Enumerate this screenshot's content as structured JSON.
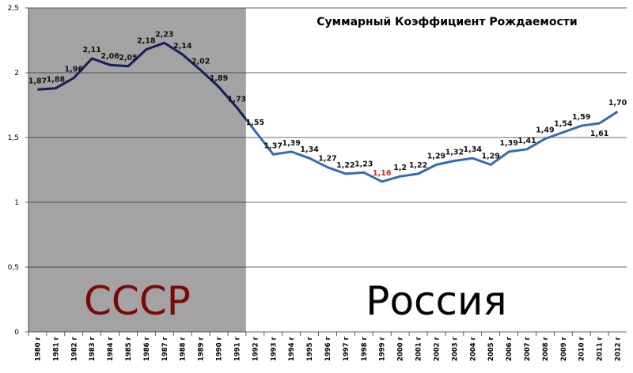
{
  "chart_data": {
    "type": "line",
    "title": "Суммарный Коэффициент Рождаемости",
    "categories": [
      "1980 г",
      "1981 г",
      "1982 г",
      "1983 г",
      "1984 г",
      "1985 г",
      "1986 г",
      "1987 г",
      "1988 г",
      "1989 г",
      "1990 г",
      "1991 г",
      "1992 г",
      "1993 г",
      "1994 г",
      "1995 г",
      "1996 г",
      "1997 г",
      "1998 г",
      "1999 г",
      "2000 г",
      "2001 г",
      "2002 г",
      "2003 г",
      "2004 г",
      "2005 г",
      "2006 г",
      "2007 г",
      "2008 г",
      "2009 г",
      "2010 г",
      "2011 г",
      "2012 г"
    ],
    "series": [
      {
        "color": "#2e6db4",
        "values": [
          1.87,
          1.88,
          1.96,
          2.11,
          2.06,
          2.05,
          2.18,
          2.23,
          2.14,
          2.02,
          1.89,
          1.73,
          1.55,
          1.37,
          1.39,
          1.34,
          1.27,
          1.22,
          1.23,
          1.16,
          1.2,
          1.22,
          1.29,
          1.32,
          1.34,
          1.29,
          1.39,
          1.41,
          1.49,
          1.54,
          1.59,
          1.61,
          1.7
        ],
        "value_labels": [
          "1,87",
          "1,88",
          "1,96",
          "2,11",
          "2,06",
          "2,05",
          "2,18",
          "2,23",
          "2,14",
          "2,02",
          "1,89",
          "1,73",
          "1,55",
          "1,37",
          "1,39",
          "1,34",
          "1,27",
          "1,22",
          "1,23",
          "1,16",
          "1,2",
          "1,22",
          "1,29",
          "1,32",
          "1,34",
          "1,29",
          "1,39",
          "1,41",
          "1,49",
          "1,54",
          "1,59",
          "1,61",
          "1,70"
        ]
      }
    ],
    "min_label_color": "#e02020",
    "regions": [
      {
        "label": "СССР",
        "start": "1980 г",
        "end": "1991 г",
        "line_color": "#1a1f5a",
        "fill": "#a3a3a3",
        "label_color": "#7a0a0a"
      },
      {
        "label": "Россия",
        "start": "1992 г",
        "end": "2012 г",
        "line_color": "#2e6db4",
        "fill": "#ffffff",
        "label_color": "#000000"
      }
    ],
    "ylim": [
      0,
      2.5
    ],
    "yticks": [
      0,
      {
        "value": 0.5,
        "label": "0,5"
      },
      1,
      {
        "value": 1.5,
        "label": "1,5"
      },
      2,
      {
        "value": 2.5,
        "label": "2,5"
      }
    ],
    "grid": true
  }
}
